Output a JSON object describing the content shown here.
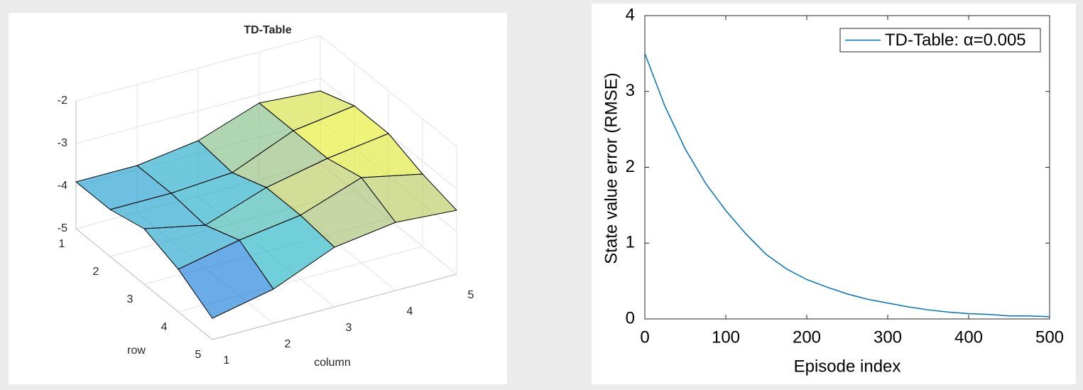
{
  "chart_data": [
    {
      "type": "surface",
      "title": "TD-Table",
      "xlabel": "column",
      "ylabel": "row",
      "x": [
        1,
        2,
        3,
        4,
        5
      ],
      "y": [
        1,
        2,
        3,
        4,
        5
      ],
      "z": [
        [
          -3.9,
          -3.9,
          -3.7,
          -3.2,
          -3.3
        ],
        [
          -3.9,
          -3.9,
          -3.8,
          -3.2,
          -3.0
        ],
        [
          -3.7,
          -4.0,
          -3.5,
          -3.2,
          -3.0
        ],
        [
          -4.0,
          -3.7,
          -3.5,
          -3.0,
          -3.3
        ],
        [
          -4.5,
          -4.2,
          -3.6,
          -3.4,
          -3.5
        ]
      ],
      "xlim": [
        1,
        5
      ],
      "ylim": [
        1,
        5
      ],
      "zlim": [
        -5,
        -2
      ],
      "xticks": [
        1,
        2,
        3,
        4,
        5
      ],
      "yticks": [
        1,
        2,
        3,
        4,
        5
      ],
      "zticks": [
        -5,
        -4,
        -3,
        -2
      ],
      "grid": true,
      "edge_color": "#000000",
      "colormap": [
        "#352a87",
        "#0d75dc",
        "#19b2c2",
        "#a5be6a",
        "#f9fb0e"
      ]
    },
    {
      "type": "line",
      "xlabel": "Episode index",
      "ylabel": "State value error (RMSE)",
      "x": [
        0,
        25,
        50,
        75,
        100,
        125,
        150,
        175,
        200,
        225,
        250,
        275,
        300,
        325,
        350,
        375,
        400,
        425,
        450,
        475,
        500
      ],
      "series": [
        {
          "name": "TD-Table: α=0.005",
          "color": "#0072bd",
          "values": [
            3.5,
            2.8,
            2.24,
            1.79,
            1.43,
            1.12,
            0.85,
            0.66,
            0.52,
            0.42,
            0.33,
            0.26,
            0.21,
            0.16,
            0.12,
            0.09,
            0.07,
            0.06,
            0.04,
            0.04,
            0.03
          ]
        }
      ],
      "xlim": [
        0,
        500
      ],
      "ylim": [
        0,
        4
      ],
      "xticks": [
        0,
        100,
        200,
        300,
        400,
        500
      ],
      "yticks": [
        0,
        1,
        2,
        3,
        4
      ],
      "legend": "upper right"
    }
  ]
}
